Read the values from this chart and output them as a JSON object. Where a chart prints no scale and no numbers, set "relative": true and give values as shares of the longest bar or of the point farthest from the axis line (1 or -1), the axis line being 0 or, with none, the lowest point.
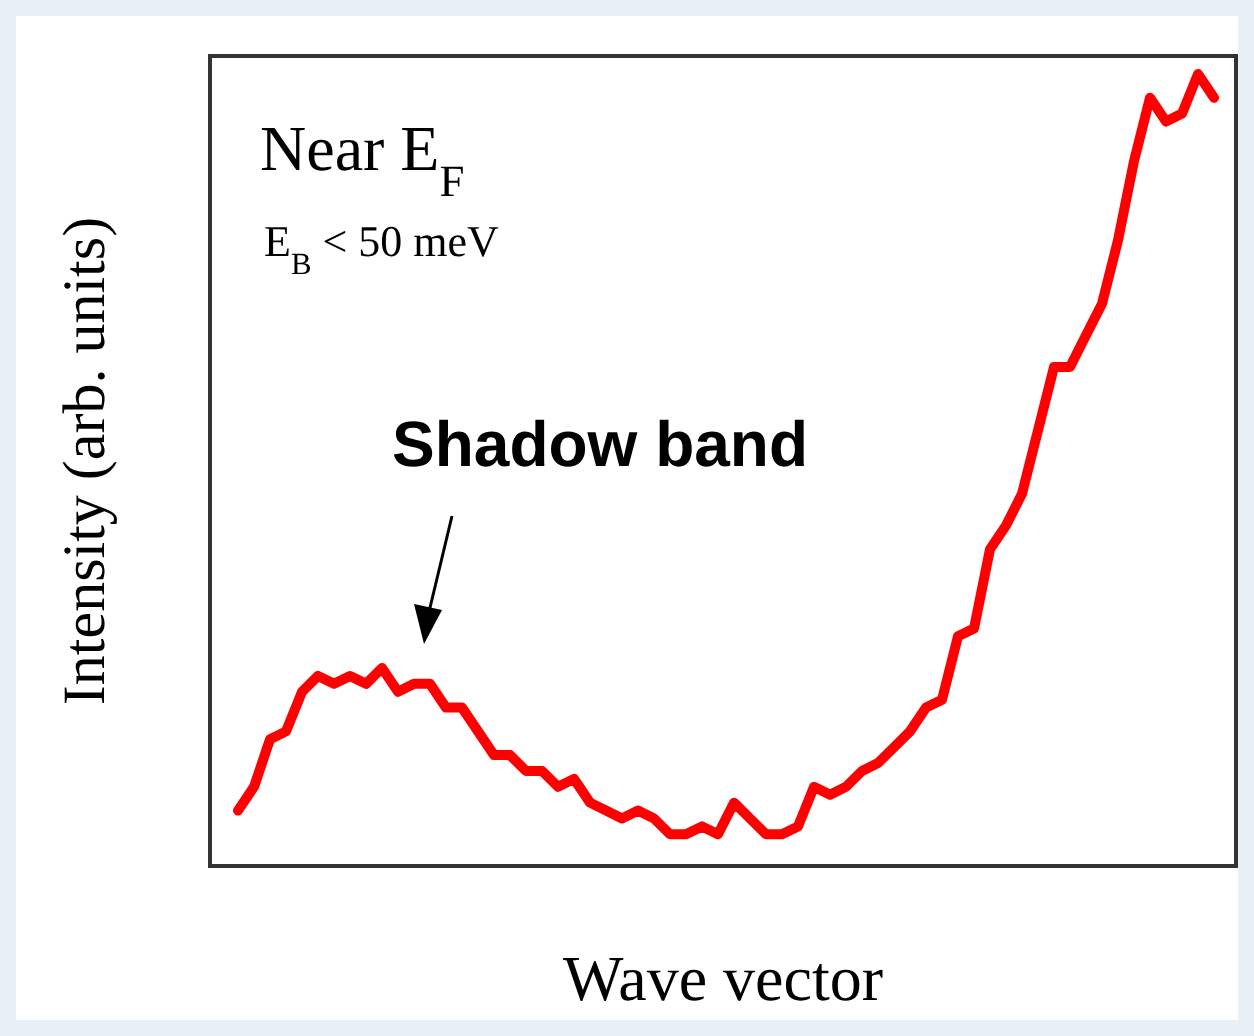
{
  "chart_data": {
    "type": "line",
    "relative": true,
    "title": "Near E$_{F}$",
    "subtitle": "E$_{B}$ < 50 meV",
    "xlabel": "Wave vector",
    "ylabel": "Intensity (arb. units)",
    "annotations": [
      "Shadow band"
    ],
    "categories": [
      null,
      null,
      null,
      null,
      null,
      null,
      null,
      null,
      null,
      null,
      null,
      null,
      null,
      null,
      null,
      null,
      null,
      null,
      null,
      null,
      null,
      null,
      null,
      null,
      null,
      null,
      null,
      null,
      null,
      null,
      null,
      null,
      null,
      null,
      null,
      null,
      null,
      null,
      null,
      null,
      null,
      null,
      null,
      null,
      null,
      null,
      null,
      null,
      null,
      null,
      null,
      null,
      null,
      null,
      null,
      null,
      null,
      null,
      null,
      null,
      null,
      null
    ],
    "series": [
      {
        "color": "#ff0000",
        "values": [
          0.07,
          0.1,
          0.16,
          0.17,
          0.22,
          0.24,
          0.23,
          0.24,
          0.23,
          0.25,
          0.22,
          0.23,
          0.23,
          0.2,
          0.2,
          0.17,
          0.14,
          0.14,
          0.12,
          0.12,
          0.1,
          0.11,
          0.08,
          0.07,
          0.06,
          0.07,
          0.06,
          0.04,
          0.04,
          0.05,
          0.04,
          0.08,
          0.06,
          0.04,
          0.04,
          0.05,
          0.1,
          0.09,
          0.1,
          0.12,
          0.13,
          0.15,
          0.17,
          0.2,
          0.21,
          0.29,
          0.3,
          0.4,
          0.43,
          0.47,
          0.55,
          0.63,
          0.63,
          0.67,
          0.71,
          0.79,
          0.89,
          0.97,
          0.94,
          0.95,
          1,
          0.97
        ]
      }
    ]
  }
}
